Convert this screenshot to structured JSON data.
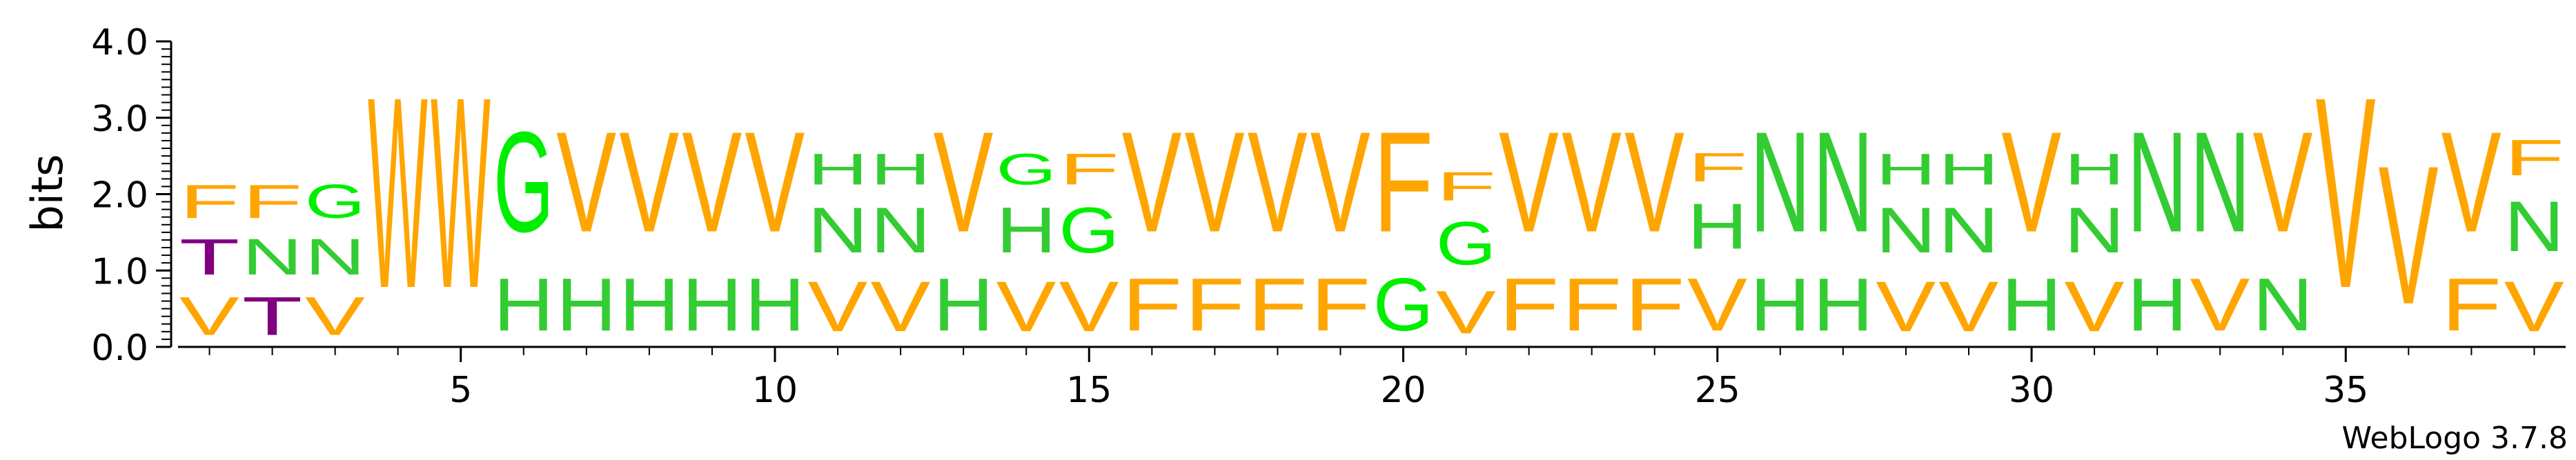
{
  "footer": "WebLogo 3.7.8",
  "colors": {
    "F": "#ffa500",
    "V": "#ffa500",
    "W": "#ffa500",
    "H": "#33cc33",
    "N": "#33cc33",
    "G": "#00ee00",
    "T": "#800080"
  },
  "chart_data": {
    "type": "sequence-logo",
    "ylabel": "bits",
    "ylim": [
      0,
      4.0
    ],
    "y_ticks": [
      "0.0",
      "1.0",
      "2.0",
      "3.0",
      "4.0"
    ],
    "x_ticks": [
      5,
      10,
      15,
      20,
      25,
      30,
      35
    ],
    "positions": [
      {
        "pos": 1,
        "stack": [
          {
            "letter": "V",
            "bits": 0.8
          },
          {
            "letter": "T",
            "bits": 0.75
          },
          {
            "letter": "F",
            "bits": 0.7
          }
        ]
      },
      {
        "pos": 2,
        "stack": [
          {
            "letter": "T",
            "bits": 0.8
          },
          {
            "letter": "N",
            "bits": 0.75
          },
          {
            "letter": "F",
            "bits": 0.7
          }
        ]
      },
      {
        "pos": 3,
        "stack": [
          {
            "letter": "V",
            "bits": 0.8
          },
          {
            "letter": "N",
            "bits": 0.75
          },
          {
            "letter": "G",
            "bits": 0.7
          }
        ]
      },
      {
        "pos": 4,
        "stack": [
          {
            "letter": "W",
            "bits": 4.0
          }
        ]
      },
      {
        "pos": 5,
        "stack": [
          {
            "letter": "W",
            "bits": 4.0
          }
        ]
      },
      {
        "pos": 6,
        "stack": [
          {
            "letter": "H",
            "bits": 1.1
          },
          {
            "letter": "G",
            "bits": 2.1
          }
        ]
      },
      {
        "pos": 7,
        "stack": [
          {
            "letter": "H",
            "bits": 1.1
          },
          {
            "letter": "V",
            "bits": 2.1
          }
        ]
      },
      {
        "pos": 8,
        "stack": [
          {
            "letter": "H",
            "bits": 1.1
          },
          {
            "letter": "V",
            "bits": 2.1
          }
        ]
      },
      {
        "pos": 9,
        "stack": [
          {
            "letter": "H",
            "bits": 1.1
          },
          {
            "letter": "V",
            "bits": 2.1
          }
        ]
      },
      {
        "pos": 10,
        "stack": [
          {
            "letter": "H",
            "bits": 1.1
          },
          {
            "letter": "V",
            "bits": 2.1
          }
        ]
      },
      {
        "pos": 11,
        "stack": [
          {
            "letter": "V",
            "bits": 1.05
          },
          {
            "letter": "N",
            "bits": 0.95
          },
          {
            "letter": "H",
            "bits": 0.65
          }
        ]
      },
      {
        "pos": 12,
        "stack": [
          {
            "letter": "V",
            "bits": 1.05
          },
          {
            "letter": "N",
            "bits": 0.95
          },
          {
            "letter": "H",
            "bits": 0.65
          }
        ]
      },
      {
        "pos": 13,
        "stack": [
          {
            "letter": "H",
            "bits": 1.1
          },
          {
            "letter": "V",
            "bits": 2.1
          }
        ]
      },
      {
        "pos": 14,
        "stack": [
          {
            "letter": "V",
            "bits": 1.05
          },
          {
            "letter": "H",
            "bits": 0.95
          },
          {
            "letter": "G",
            "bits": 0.65
          }
        ]
      },
      {
        "pos": 15,
        "stack": [
          {
            "letter": "V",
            "bits": 1.05
          },
          {
            "letter": "G",
            "bits": 0.95
          },
          {
            "letter": "F",
            "bits": 0.65
          }
        ]
      },
      {
        "pos": 16,
        "stack": [
          {
            "letter": "F",
            "bits": 1.1
          },
          {
            "letter": "V",
            "bits": 2.1
          }
        ]
      },
      {
        "pos": 17,
        "stack": [
          {
            "letter": "F",
            "bits": 1.1
          },
          {
            "letter": "V",
            "bits": 2.1
          }
        ]
      },
      {
        "pos": 18,
        "stack": [
          {
            "letter": "F",
            "bits": 1.1
          },
          {
            "letter": "V",
            "bits": 2.1
          }
        ]
      },
      {
        "pos": 19,
        "stack": [
          {
            "letter": "F",
            "bits": 1.1
          },
          {
            "letter": "V",
            "bits": 2.1
          }
        ]
      },
      {
        "pos": 20,
        "stack": [
          {
            "letter": "G",
            "bits": 1.1
          },
          {
            "letter": "F",
            "bits": 2.1
          }
        ]
      },
      {
        "pos": 21,
        "stack": [
          {
            "letter": "V",
            "bits": 0.9
          },
          {
            "letter": "G",
            "bits": 0.9
          },
          {
            "letter": "F",
            "bits": 0.6
          }
        ]
      },
      {
        "pos": 22,
        "stack": [
          {
            "letter": "F",
            "bits": 1.1
          },
          {
            "letter": "V",
            "bits": 2.1
          }
        ]
      },
      {
        "pos": 23,
        "stack": [
          {
            "letter": "F",
            "bits": 1.1
          },
          {
            "letter": "V",
            "bits": 2.1
          }
        ]
      },
      {
        "pos": 24,
        "stack": [
          {
            "letter": "F",
            "bits": 1.1
          },
          {
            "letter": "V",
            "bits": 2.1
          }
        ]
      },
      {
        "pos": 25,
        "stack": [
          {
            "letter": "V",
            "bits": 1.1
          },
          {
            "letter": "H",
            "bits": 0.95
          },
          {
            "letter": "F",
            "bits": 0.6
          }
        ]
      },
      {
        "pos": 26,
        "stack": [
          {
            "letter": "H",
            "bits": 1.1
          },
          {
            "letter": "N",
            "bits": 2.1
          }
        ]
      },
      {
        "pos": 27,
        "stack": [
          {
            "letter": "H",
            "bits": 1.1
          },
          {
            "letter": "N",
            "bits": 2.1
          }
        ]
      },
      {
        "pos": 28,
        "stack": [
          {
            "letter": "V",
            "bits": 1.05
          },
          {
            "letter": "N",
            "bits": 0.95
          },
          {
            "letter": "H",
            "bits": 0.65
          }
        ]
      },
      {
        "pos": 29,
        "stack": [
          {
            "letter": "V",
            "bits": 1.05
          },
          {
            "letter": "N",
            "bits": 0.95
          },
          {
            "letter": "H",
            "bits": 0.65
          }
        ]
      },
      {
        "pos": 30,
        "stack": [
          {
            "letter": "H",
            "bits": 1.1
          },
          {
            "letter": "V",
            "bits": 2.1
          }
        ]
      },
      {
        "pos": 31,
        "stack": [
          {
            "letter": "V",
            "bits": 1.05
          },
          {
            "letter": "N",
            "bits": 0.95
          },
          {
            "letter": "H",
            "bits": 0.65
          }
        ]
      },
      {
        "pos": 32,
        "stack": [
          {
            "letter": "H",
            "bits": 1.1
          },
          {
            "letter": "N",
            "bits": 2.1
          }
        ]
      },
      {
        "pos": 33,
        "stack": [
          {
            "letter": "V",
            "bits": 1.1
          },
          {
            "letter": "N",
            "bits": 2.1
          }
        ]
      },
      {
        "pos": 34,
        "stack": [
          {
            "letter": "N",
            "bits": 1.1
          },
          {
            "letter": "V",
            "bits": 2.1
          }
        ]
      },
      {
        "pos": 35,
        "stack": [
          {
            "letter": "V",
            "bits": 4.0
          }
        ]
      },
      {
        "pos": 36,
        "stack": [
          {
            "letter": "V",
            "bits": 2.9
          }
        ]
      },
      {
        "pos": 37,
        "stack": [
          {
            "letter": "F",
            "bits": 1.1
          },
          {
            "letter": "V",
            "bits": 2.1
          }
        ]
      },
      {
        "pos": 38,
        "stack": [
          {
            "letter": "V",
            "bits": 1.05
          },
          {
            "letter": "N",
            "bits": 1.05
          },
          {
            "letter": "F",
            "bits": 0.75
          }
        ]
      }
    ]
  }
}
